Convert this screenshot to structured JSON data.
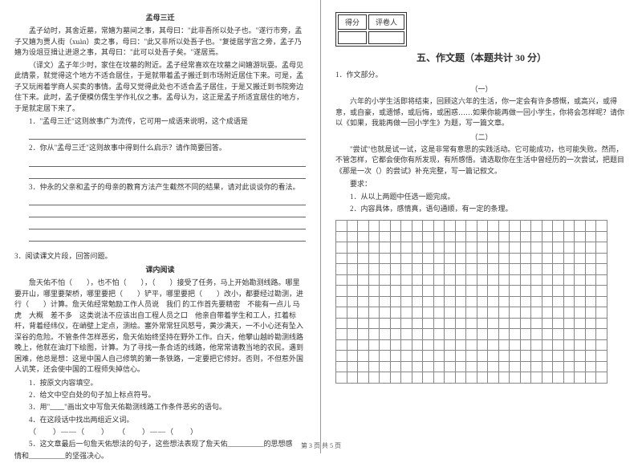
{
  "left": {
    "title1": "孟母三迁",
    "p1": "孟子幼时，其舍近墓，常嬉为墓间之事，其母曰：\"此非吾所以处子也。\"遂行市旁，孟子又嬉为贾人街（xuàn）卖之事，母曰：\"此又非所以处吾子也。\"复徙居学宫之旁，孟子乃嬉为设俎豆揖让进退之事，其母曰：\"此可以处吾子矣。\"遂居焉。",
    "p2": "（译文）孟子年少时，家住在坟墓的附近。孟子经常喜欢在坟墓之间嬉游玩耍。孟母见此情景，就觉得这个地方不适合居住，于是就带着孟子搬迁到市场附近居住下来。可是，孟子又玩闹着学商人买卖的事情。孟母又觉得此处也不适合孟子居住，于是又搬迁到书院旁边住下来。此时，孟子便模仿儒生学作礼仪之事。孟母认为，这正是孟子所适宜居住的地方，于是就定居下来了。",
    "q1": "1．\"孟母三迁\"这则故事广为流传，它可用一成语来说明，这个成语是",
    "q2": "2．你从\"孟母三迁\"这则故事中得到什么启示？请作简要回答。",
    "q3": "3．仲永的父亲和孟子的母亲的教育方法产生截然不同的结果，请对此谈谈你的看法。",
    "q4": "3．阅读课文片段，回答问题。",
    "title2": "课内阅读",
    "p3": "詹天佑不怕（　　），也不怕（　　），（　　）接受了任务，马上开始勘测线路。哪里要开山，哪里要架桥，哪里要把（　　）铲平，哪里要把（　　）改小，都要经过勘测，进行（　　）计算。詹天佑经常勉励工作人员说　我们 的工作首先要精密　不能有一点儿 马虎　大概　差不多　这类说法不应该出自工程人员之口　他亲自带着学生和工人，扛着标杆，背着经纬仪，在峭壁上定点，测绘。塞外常常狂风怒号，黄沙满天，一不小心还有坠入深谷的危险。不管条件怎样恶劣，詹天佑始终坚持在野外工作。白天，他攀山越岭勘测线路　晚上，他就在油灯下绘图，计算。为了寻找一条合适的线路，他常常请教当地的农民。遇到困难，他总是想：这是中国人自己修筑的第一条铁路，一定要把它修好。否则，不但惹外国人讥笑，还会使中国的工程师失掉信心。",
    "sq1": "1．按原文内容填空。",
    "sq2": "2．给文中空白处的句子加上标点符号。",
    "sq3": "3．用\"﹏﹏\"画出文中写詹天佑勘测线路工作条件恶劣的语句。",
    "sq4": "4．在这段话中找出两组近义词。",
    "sq4a": "（　　）——（　　）　　（　　）——（　　）",
    "sq5a": "5．这文章最后一句詹天佑想法的句子，这些想法表现了詹天佑__________的思想感",
    "sq5b": "情和__________的坚强决心。"
  },
  "right": {
    "scoreLabels": [
      "得分",
      "评卷人"
    ],
    "sectionTitle": "五、作文题（本题共计 30 分）",
    "q1": "1．作文部分。",
    "sub1": "（一）",
    "p1": "六年的小学生活即将结束，回顾这六年的生活，你一定会有许多感慨，或高兴，或得意，或自豪，或遗憾，或后悔，或困惑……如果你能再做一回小学生，你将会怎样呢？请你以《如果，我能再做一回小学生》为题，写一篇文章。",
    "sub2": "（二）",
    "p2": "\"尝试\"也就是试一试，这是非常有意思的实践活动。它可能成功，也可能失败。然而，不管怎样，它都会使你有所发现，有所感悟。请选取你在生活中曾经历的一次尝试，把题目《那是一次（）的尝试》补充完整，写一篇记叙文。",
    "req": "要求：",
    "req1": "1．从以上两题中任选一题完成。",
    "req2": "2．内容具体，感情真，语句通顺，有一定的条理。"
  },
  "footer": "第 3 页 共 5 页",
  "grid": {
    "rows": 15,
    "cols": 25
  }
}
